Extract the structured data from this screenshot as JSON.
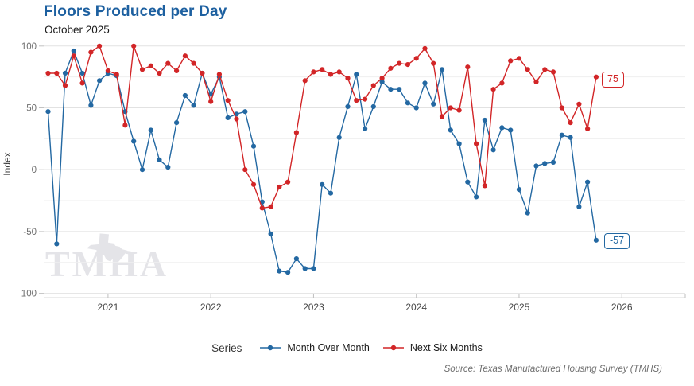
{
  "chart": {
    "title": "Floors Produced per Day",
    "subtitle": "October 2025",
    "ylabel": "Index",
    "end_labels": {
      "next_six_months": "75",
      "month_over_month": "-57"
    }
  },
  "legend": {
    "title": "Series",
    "items": [
      {
        "label": "Month Over Month",
        "color": "#2368a2"
      },
      {
        "label": "Next Six Months",
        "color": "#d22527"
      }
    ]
  },
  "source": "Source: Texas Manufactured Housing Survey (TMHS)",
  "watermark": "TMHA",
  "chart_data": {
    "type": "line",
    "title": "Floors Produced per Day",
    "subtitle": "October 2025",
    "ylabel": "Index",
    "ylim": [
      -100,
      100
    ],
    "grid_step": 25,
    "start_month": "2020-06",
    "frequency": "monthly",
    "x_tick_labels": [
      "2021",
      "2022",
      "2023",
      "2024",
      "2025",
      "2026"
    ],
    "y_ticks": [
      100,
      50,
      0,
      -50,
      -100
    ],
    "legend_position": "bottom",
    "series": [
      {
        "name": "Month Over Month",
        "color": "#2368a2",
        "values": [
          47,
          -60,
          78,
          96,
          78,
          52,
          72,
          78,
          76,
          47,
          23,
          0,
          32,
          8,
          2,
          38,
          60,
          52,
          78,
          61,
          75,
          42,
          45,
          47,
          19,
          -26,
          -52,
          -82,
          -83,
          -72,
          -80,
          -80,
          -12,
          -19,
          26,
          51,
          77,
          33,
          51,
          71,
          65,
          65,
          54,
          50,
          70,
          53,
          81,
          32,
          21,
          -10,
          -22,
          40,
          16,
          34,
          32,
          -16,
          -35,
          3,
          5,
          6,
          28,
          26,
          -30,
          -10,
          -57
        ]
      },
      {
        "name": "Next Six Months",
        "color": "#d22527",
        "values": [
          78,
          78,
          68,
          92,
          70,
          95,
          100,
          80,
          77,
          36,
          100,
          81,
          84,
          78,
          86,
          80,
          92,
          86,
          78,
          55,
          77,
          56,
          41,
          0,
          -12,
          -31,
          -30,
          -14,
          -10,
          30,
          72,
          79,
          81,
          77,
          79,
          74,
          56,
          57,
          68,
          74,
          82,
          86,
          85,
          90,
          98,
          86,
          43,
          50,
          48,
          83,
          21,
          -13,
          65,
          70,
          88,
          90,
          81,
          71,
          81,
          79,
          50,
          38,
          53,
          33,
          75
        ]
      }
    ]
  }
}
